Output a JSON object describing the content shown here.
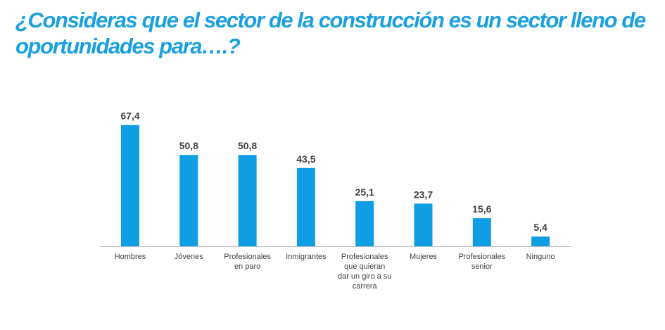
{
  "title": "¿Consideras que el sector de la construcción es un sector lleno de oportunidades para….?",
  "colors": {
    "title": "#1aa0e0",
    "bar": "#0f9de4",
    "axis": "#bfbfbf",
    "text": "#404040"
  },
  "chart_data": {
    "type": "bar",
    "title": "",
    "xlabel": "",
    "ylabel": "",
    "grid": false,
    "legend": "none",
    "ylim": [
      0,
      70
    ],
    "categories": [
      "Hombres",
      "Jóvenes",
      "Profesionales en paro",
      "Inmigrantes",
      "Profesionales que quieran dar un giro a su carrera",
      "Mujeres",
      "Profesionales senior",
      "Ninguno"
    ],
    "category_lines": [
      [
        "Hombres"
      ],
      [
        "Jóvenes"
      ],
      [
        "Profesionales",
        "en paro"
      ],
      [
        "Inmigrantes"
      ],
      [
        "Profesionales",
        "que quieran",
        "dar un giro a su",
        "carrera"
      ],
      [
        "Mujeres"
      ],
      [
        "Profesionales",
        "senior"
      ],
      [
        "Ninguno"
      ]
    ],
    "values": [
      67.4,
      50.8,
      50.8,
      43.5,
      25.1,
      23.7,
      15.6,
      5.4
    ],
    "value_labels": [
      "67,4",
      "50,8",
      "50,8",
      "43,5",
      "25,1",
      "23,7",
      "15,6",
      "5,4"
    ]
  }
}
